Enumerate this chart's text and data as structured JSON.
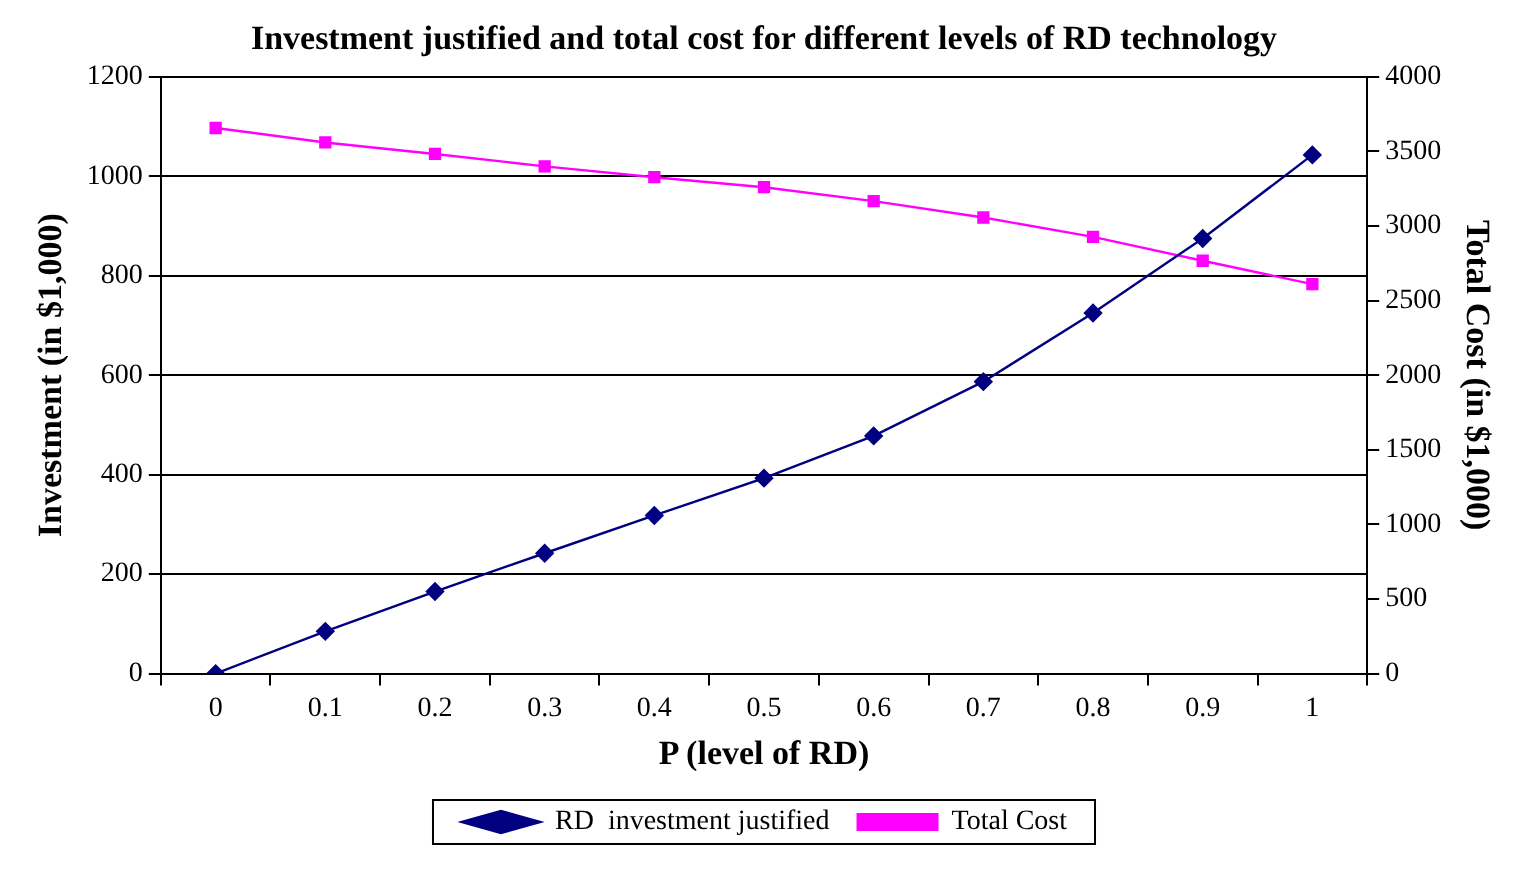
{
  "chart_data": {
    "type": "line",
    "title": "Investment justified and total cost for different levels of RD technology",
    "xlabel": "P (level of RD)",
    "ylabel": "Investment (in $1,000)",
    "y2label": "Total Cost (in $1,000)",
    "categories": [
      "0",
      "0.1",
      "0.2",
      "0.3",
      "0.4",
      "0.5",
      "0.6",
      "0.7",
      "0.8",
      "0.9",
      "1"
    ],
    "series": [
      {
        "name": "RD  investment justified",
        "color": "#000080",
        "marker": "diamond",
        "values": [
          0,
          85,
          165,
          242,
          318,
          393,
          478,
          587,
          725,
          875,
          1043
        ]
      },
      {
        "name": "Total Cost",
        "color": "#ff00ff",
        "marker": "square",
        "axis": "y2",
        "values": [
          3657,
          3560,
          3483,
          3400,
          3327,
          3260,
          3167,
          3057,
          2927,
          2767,
          2610
        ]
      }
    ],
    "ylim": [
      0,
      1200
    ],
    "yticks": [
      0,
      200,
      400,
      600,
      800,
      1000,
      1200
    ],
    "y2lim": [
      0,
      4000
    ],
    "y2ticks": [
      0,
      500,
      1000,
      1500,
      2000,
      2500,
      3000,
      3500,
      4000
    ],
    "grid": "y",
    "legend": "bottom",
    "line_style": "solid"
  }
}
